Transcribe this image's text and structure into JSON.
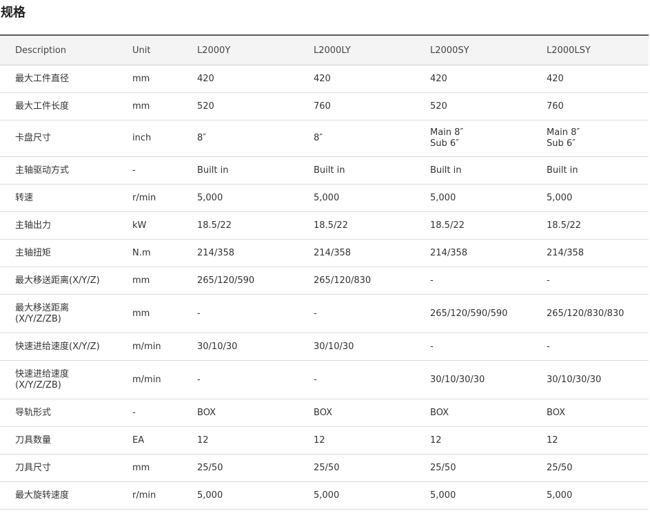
{
  "title": "规格",
  "table": {
    "headers": [
      "Description",
      "Unit",
      "L2000Y",
      "L2000LY",
      "L2000SY",
      "L2000LSY"
    ],
    "rows": [
      [
        "最大工件直径",
        "mm",
        "420",
        "420",
        "420",
        "420"
      ],
      [
        "最大工件长度",
        "mm",
        "520",
        "760",
        "520",
        "760"
      ],
      [
        "卡盘尺寸",
        "inch",
        "8″",
        "8″",
        "Main 8″\nSub 6″",
        "Main 8″\nSub 6″"
      ],
      [
        "主轴驱动方式",
        "-",
        "Built in",
        "Built in",
        "Built in",
        "Built in"
      ],
      [
        "转速",
        "r/min",
        "5,000",
        "5,000",
        "5,000",
        "5,000"
      ],
      [
        "主轴出力",
        "kW",
        "18.5/22",
        "18.5/22",
        "18.5/22",
        "18.5/22"
      ],
      [
        "主轴扭矩",
        "N.m",
        "214/358",
        "214/358",
        "214/358",
        "214/358"
      ],
      [
        "最大移送距离(X/Y/Z)",
        "mm",
        "265/120/590",
        "265/120/830",
        "-",
        "-"
      ],
      [
        "最大移送距离\n(X/Y/Z/ZB)",
        "mm",
        "-",
        "-",
        "265/120/590/590",
        "265/120/830/830"
      ],
      [
        "快速进给速度(X/Y/Z)",
        "m/min",
        "30/10/30",
        "30/10/30",
        "-",
        "-"
      ],
      [
        "快速进给速度\n(X/Y/Z/ZB)",
        "m/min",
        "-",
        "-",
        "30/10/30/30",
        "30/10/30/30"
      ],
      [
        "导轨形式",
        "-",
        "BOX",
        "BOX",
        "BOX",
        "BOX"
      ],
      [
        "刀具数量",
        "EA",
        "12",
        "12",
        "12",
        "12"
      ],
      [
        "刀具尺寸",
        "mm",
        "25/50",
        "25/50",
        "25/50",
        "25/50"
      ],
      [
        "最大旋转速度",
        "r/min",
        "5,000",
        "5,000",
        "5,000",
        "5,000"
      ]
    ]
  }
}
